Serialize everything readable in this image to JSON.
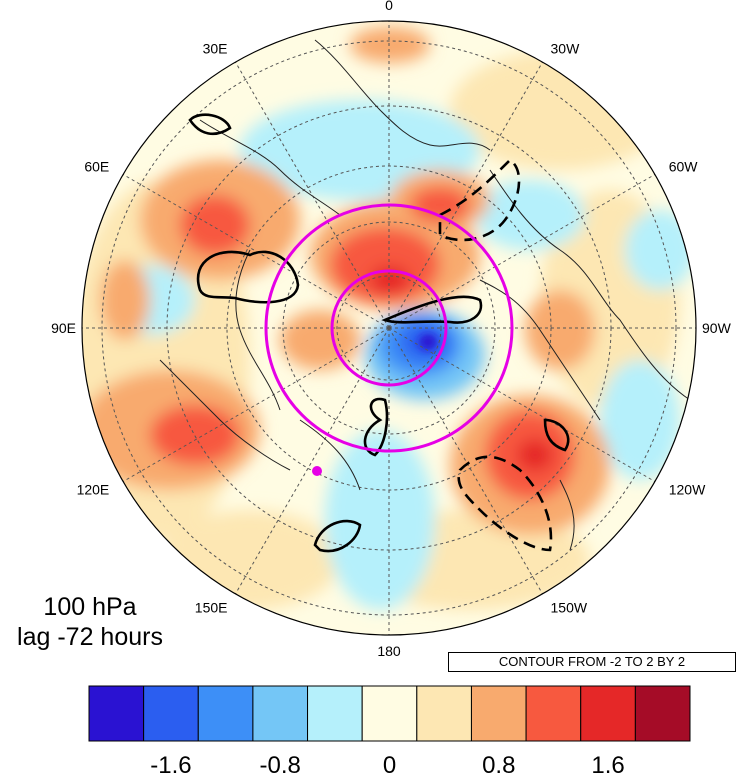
{
  "map": {
    "title_line1": "100 hPa",
    "title_line2": "lag -72 hours",
    "contour_info": "CONTOUR FROM -2 TO 2 BY 2",
    "longitude_labels": [
      {
        "lon": 0,
        "text": "0"
      },
      {
        "lon": -30,
        "text": "30W"
      },
      {
        "lon": -60,
        "text": "60W"
      },
      {
        "lon": -90,
        "text": "90W"
      },
      {
        "lon": -120,
        "text": "120W"
      },
      {
        "lon": -150,
        "text": "150W"
      },
      {
        "lon": 180,
        "text": "180"
      },
      {
        "lon": 150,
        "text": "150E"
      },
      {
        "lon": 120,
        "text": "120E"
      },
      {
        "lon": 90,
        "text": "90E"
      },
      {
        "lon": 60,
        "text": "60E"
      },
      {
        "lon": 30,
        "text": "30E"
      }
    ]
  },
  "colorbar": {
    "colors": [
      "#2a12d2",
      "#2b5ef0",
      "#3d8ff7",
      "#74c6f6",
      "#b5f0fb",
      "#fffce3",
      "#fde7b3",
      "#f8aa6e",
      "#f7593f",
      "#e52828",
      "#a50c27"
    ],
    "tick_labels": [
      "-1.6",
      "-0.8",
      "0",
      "0.8",
      "1.6"
    ],
    "tick_values": [
      -1.6,
      -0.8,
      0,
      0.8,
      1.6
    ],
    "range": [
      -2.2,
      2.2
    ]
  }
}
